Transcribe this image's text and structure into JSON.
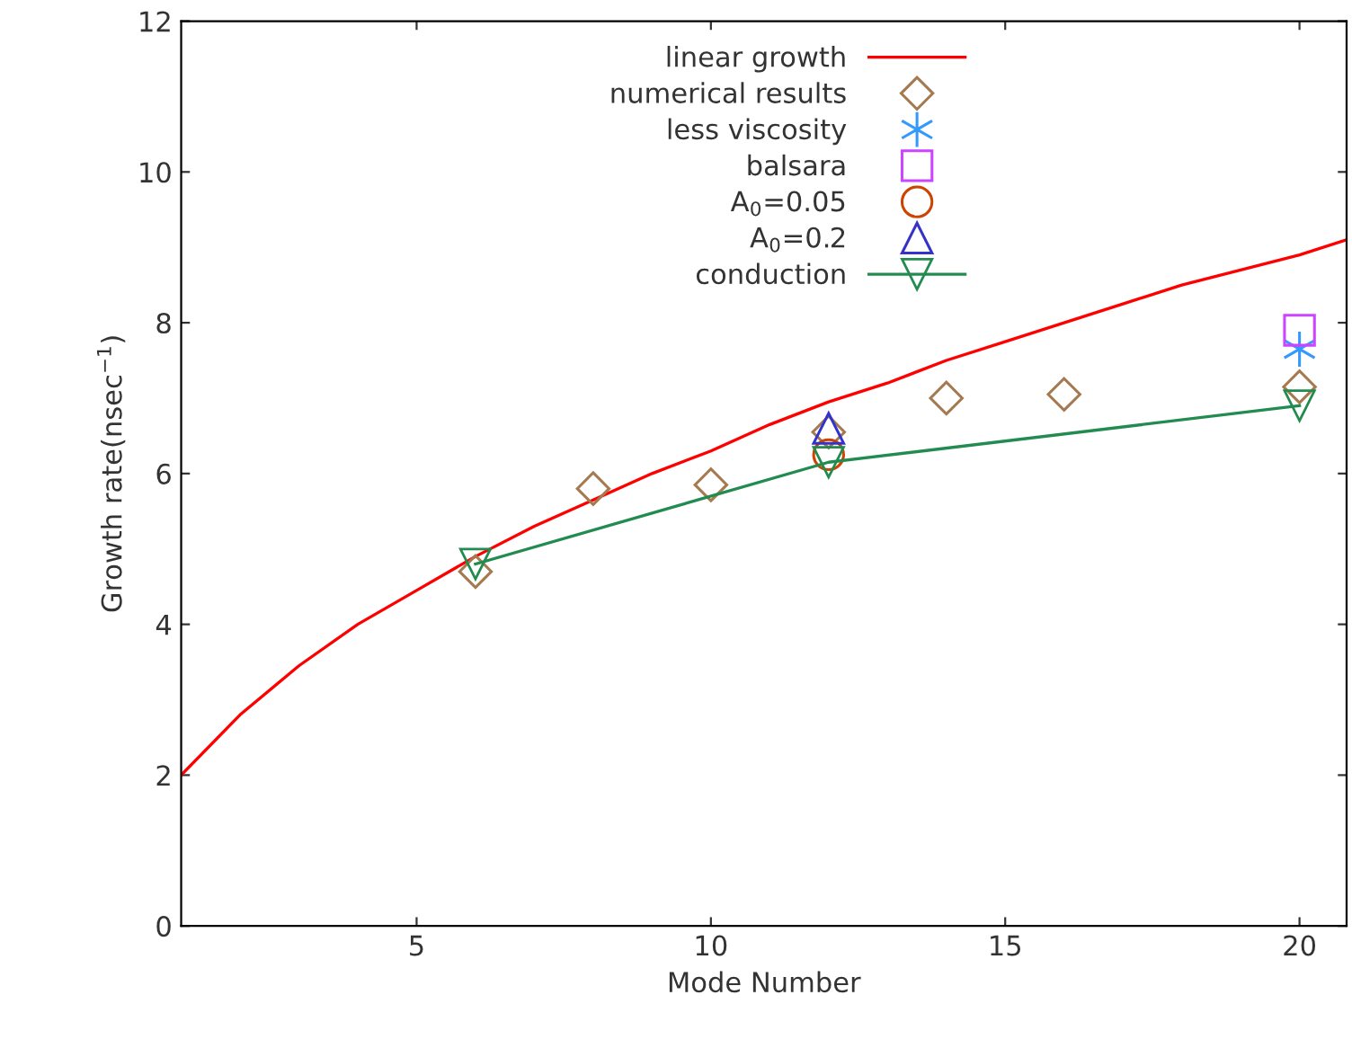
{
  "chart_data": {
    "type": "scatter",
    "xlabel": "Mode Number",
    "ylabel": "Growth rate(nsec$^{−1}$)",
    "xlim": [
      1,
      20.8
    ],
    "xticks": [
      5,
      10,
      15,
      20
    ],
    "ylim": [
      0,
      12
    ],
    "yticks": [
      0,
      2,
      4,
      6,
      8,
      10,
      12
    ],
    "grid": false,
    "legend": "top",
    "series": [
      {
        "name": "linear growth",
        "type": "line",
        "color": "#ff0000",
        "marker": "none",
        "line_style": "solid",
        "x": [
          1,
          2,
          3,
          4,
          5,
          6,
          7,
          8,
          9,
          10,
          11,
          12,
          13,
          14,
          15,
          16,
          17,
          18,
          19,
          20,
          20.8
        ],
        "values": [
          2.0,
          2.8,
          3.45,
          4.0,
          4.45,
          4.9,
          5.3,
          5.65,
          6.0,
          6.3,
          6.65,
          6.95,
          7.2,
          7.5,
          7.75,
          8.0,
          8.25,
          8.5,
          8.7,
          8.9,
          9.1
        ]
      },
      {
        "name": "numerical results",
        "color": "#a57a50",
        "marker": "diamond",
        "x": [
          6,
          8,
          10,
          12,
          14,
          16,
          20
        ],
        "values": [
          4.7,
          5.8,
          5.85,
          6.55,
          7.0,
          7.05,
          7.15
        ]
      },
      {
        "name": "less viscosity",
        "color": "#3399ff",
        "marker": "cross",
        "x": [
          20
        ],
        "values": [
          7.65
        ]
      },
      {
        "name": "balsara",
        "color": "#cc44ff",
        "marker": "square",
        "x": [
          20
        ],
        "values": [
          7.9
        ]
      },
      {
        "name": "A$_{0}$=0.05",
        "color": "#cc4400",
        "marker": "circle",
        "x": [
          12
        ],
        "values": [
          6.25
        ]
      },
      {
        "name": "A$_{0}$=0.2",
        "color": "#3333cc",
        "marker": "triangle",
        "x": [
          12
        ],
        "values": [
          6.6
        ]
      },
      {
        "name": "conduction",
        "type": "line",
        "color": "#228b50",
        "marker": "triangle_down",
        "line_style": "solid",
        "x": [
          6,
          12,
          20
        ],
        "values": [
          4.8,
          6.15,
          6.9
        ]
      }
    ]
  }
}
